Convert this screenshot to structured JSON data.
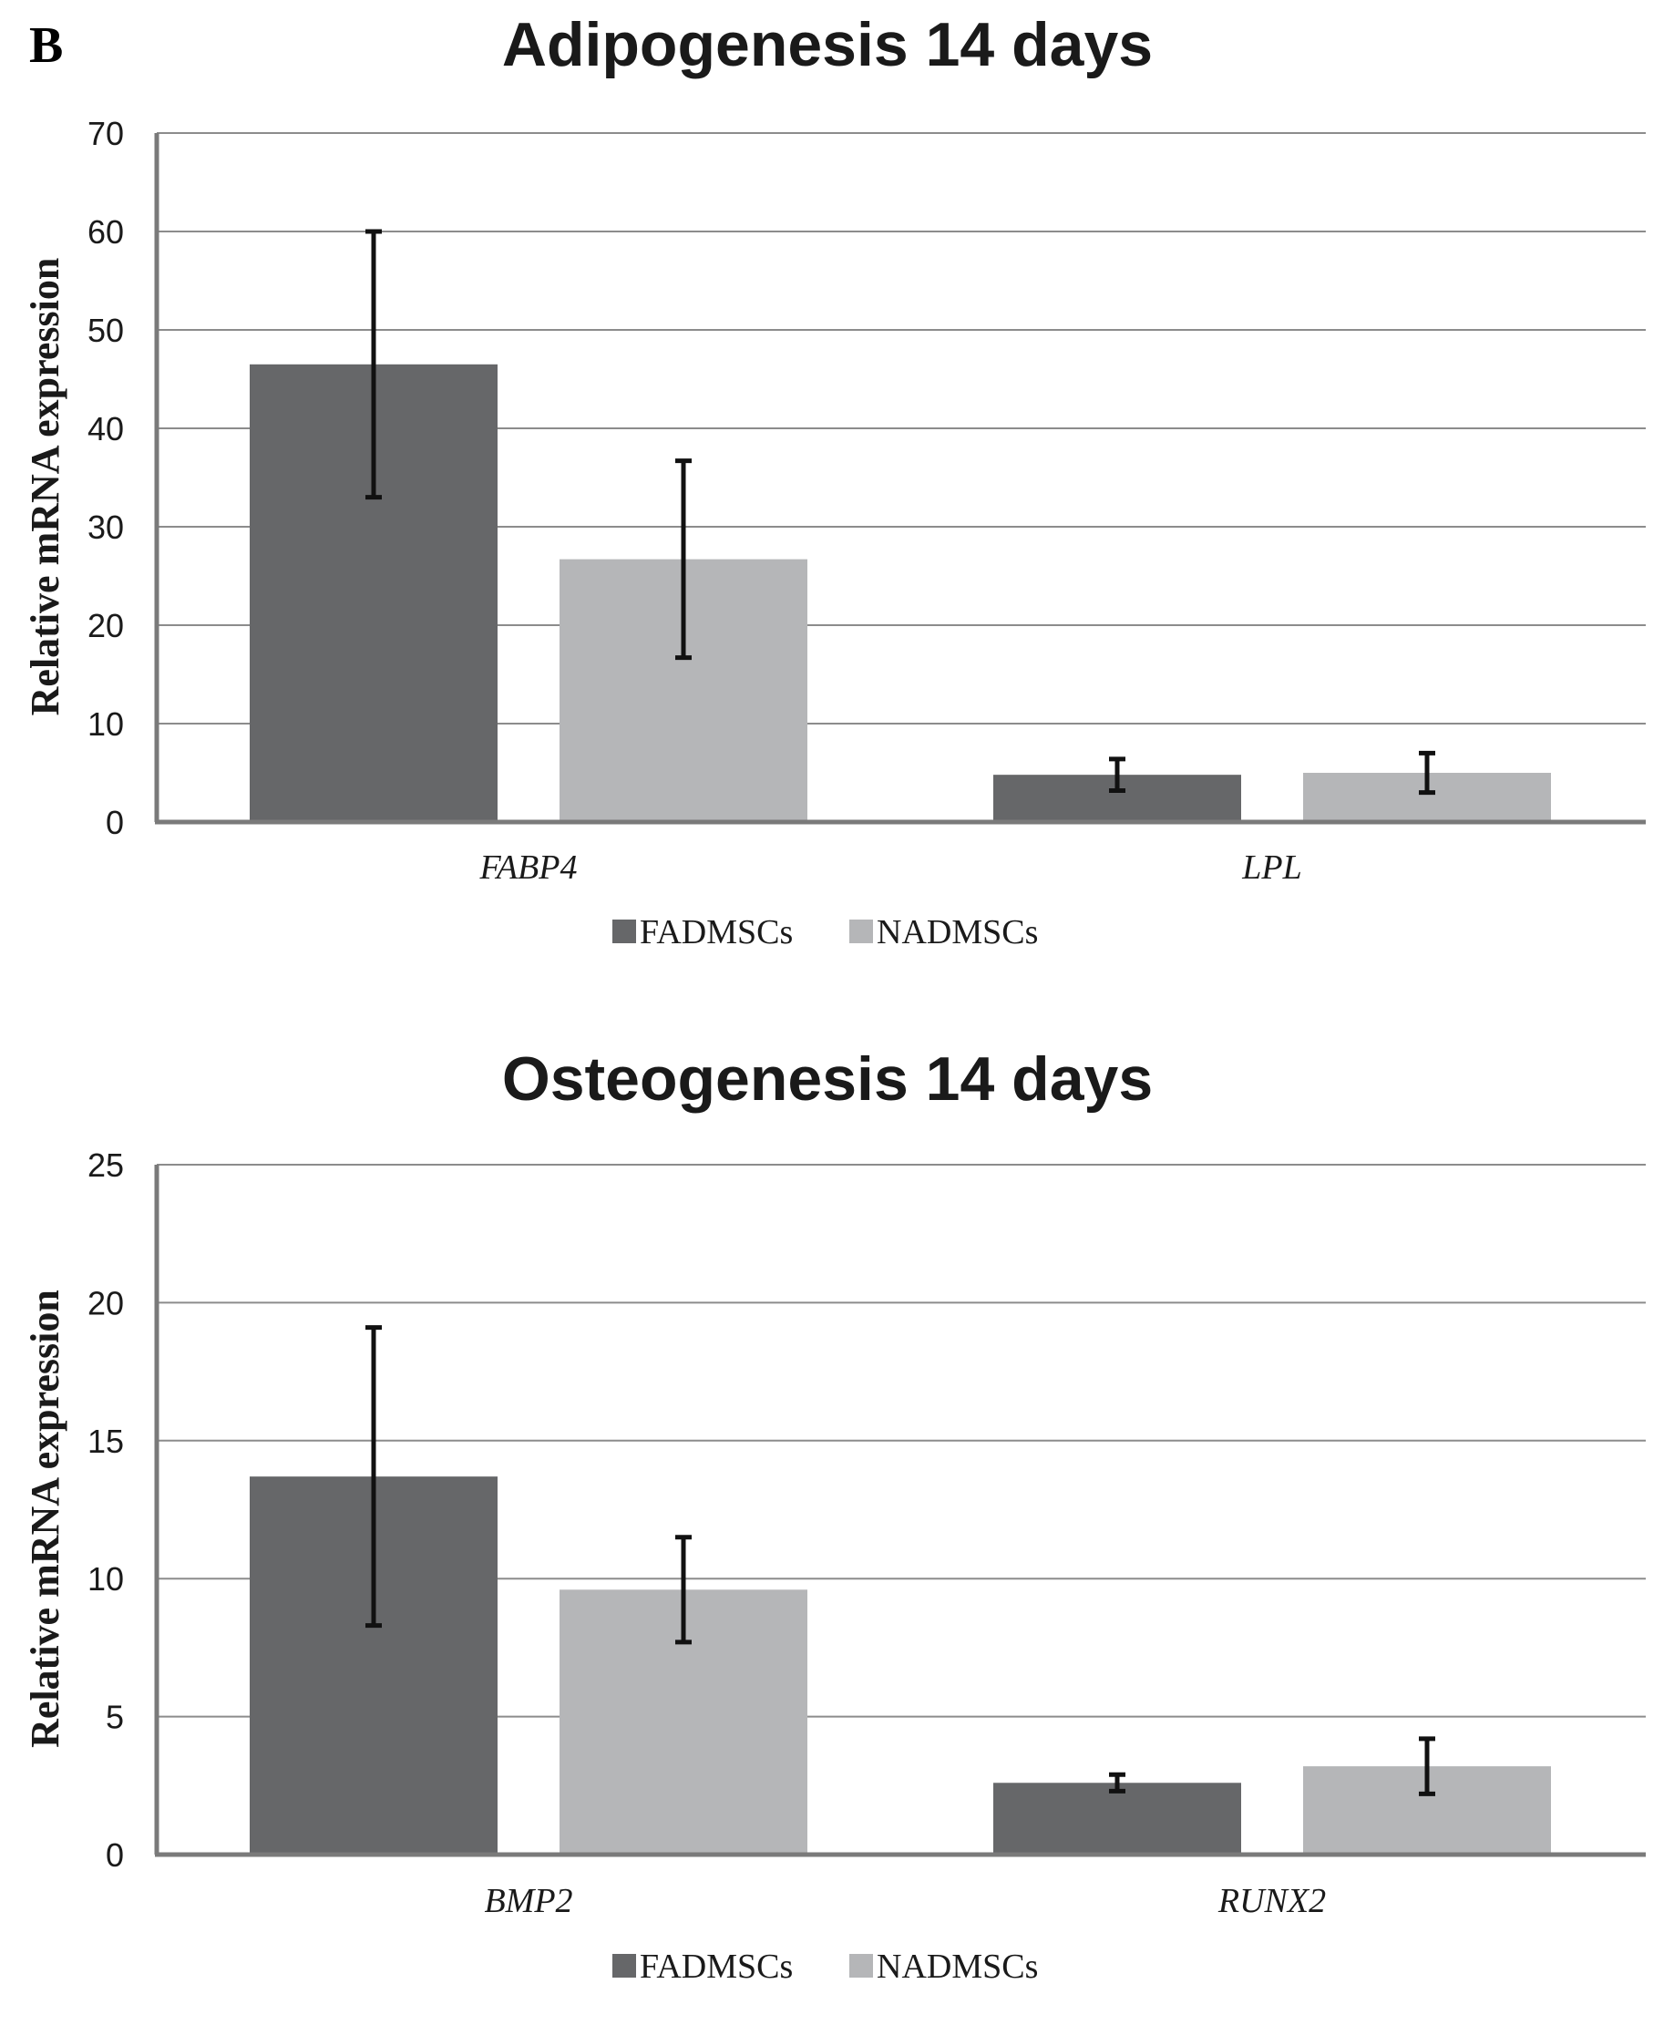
{
  "panel_label": "B",
  "chart_data": [
    {
      "type": "bar",
      "title": "Adipogenesis 14 days",
      "ylabel": "Relative mRNA expression",
      "xlabel": "",
      "ylim": [
        0,
        70
      ],
      "yticks": [
        0,
        10,
        20,
        30,
        40,
        50,
        60,
        70
      ],
      "categories": [
        "FABP4",
        "LPL"
      ],
      "series": [
        {
          "name": "FADMSCs",
          "color": "#666769",
          "values": [
            46.5,
            4.8
          ],
          "error": [
            13.5,
            1.6
          ]
        },
        {
          "name": "NADMSCs",
          "color": "#b5b6b8",
          "values": [
            26.7,
            5.0
          ],
          "error": [
            10.0,
            2.0
          ]
        }
      ],
      "grid": true,
      "legend": "bottom-center"
    },
    {
      "type": "bar",
      "title": "Osteogenesis 14 days",
      "ylabel": "Relative mRNA expression",
      "xlabel": "",
      "ylim": [
        0,
        25
      ],
      "yticks": [
        0,
        5,
        10,
        15,
        20,
        25
      ],
      "categories": [
        "BMP2",
        "RUNX2"
      ],
      "series": [
        {
          "name": "FADMSCs",
          "color": "#666769",
          "values": [
            13.7,
            2.6
          ],
          "error": [
            5.4,
            0.3
          ]
        },
        {
          "name": "NADMSCs",
          "color": "#b5b6b8",
          "values": [
            9.6,
            3.2
          ],
          "error": [
            1.9,
            1.0
          ]
        }
      ],
      "grid": true,
      "legend": "bottom-center"
    }
  ]
}
